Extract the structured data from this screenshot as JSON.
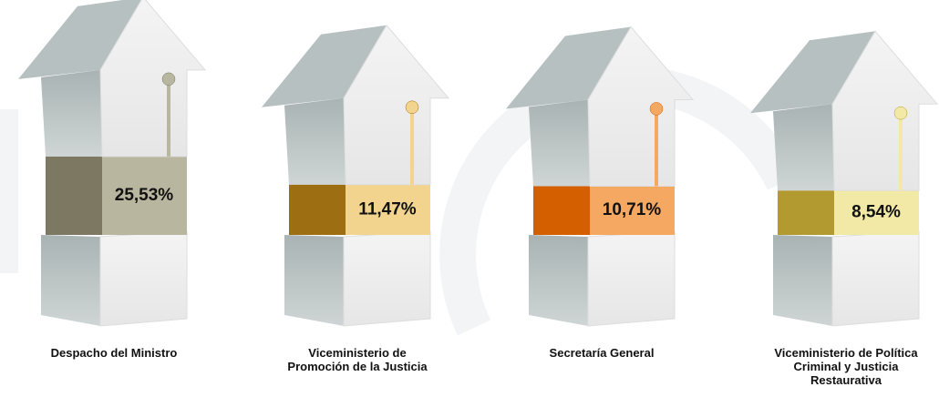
{
  "chart_data": {
    "type": "pictorial-bar",
    "categories": [
      "Despacho del Ministro",
      "Viceministerio de Promoción de la Justicia",
      "Secretaría General",
      "Viceministerio de Política Criminal y Justicia Restaurativa"
    ],
    "values": [
      25.53,
      11.47,
      10.71,
      8.54
    ],
    "value_labels": [
      "25,53%",
      "11,47%",
      "10,71%",
      "8,54%"
    ],
    "colors": [
      "#b9b69f",
      "#f2d48e",
      "#f5a862",
      "#f2e9a6"
    ],
    "dark_colors": [
      "#7c7861",
      "#9e6e12",
      "#d35f00",
      "#b39a30"
    ]
  }
}
